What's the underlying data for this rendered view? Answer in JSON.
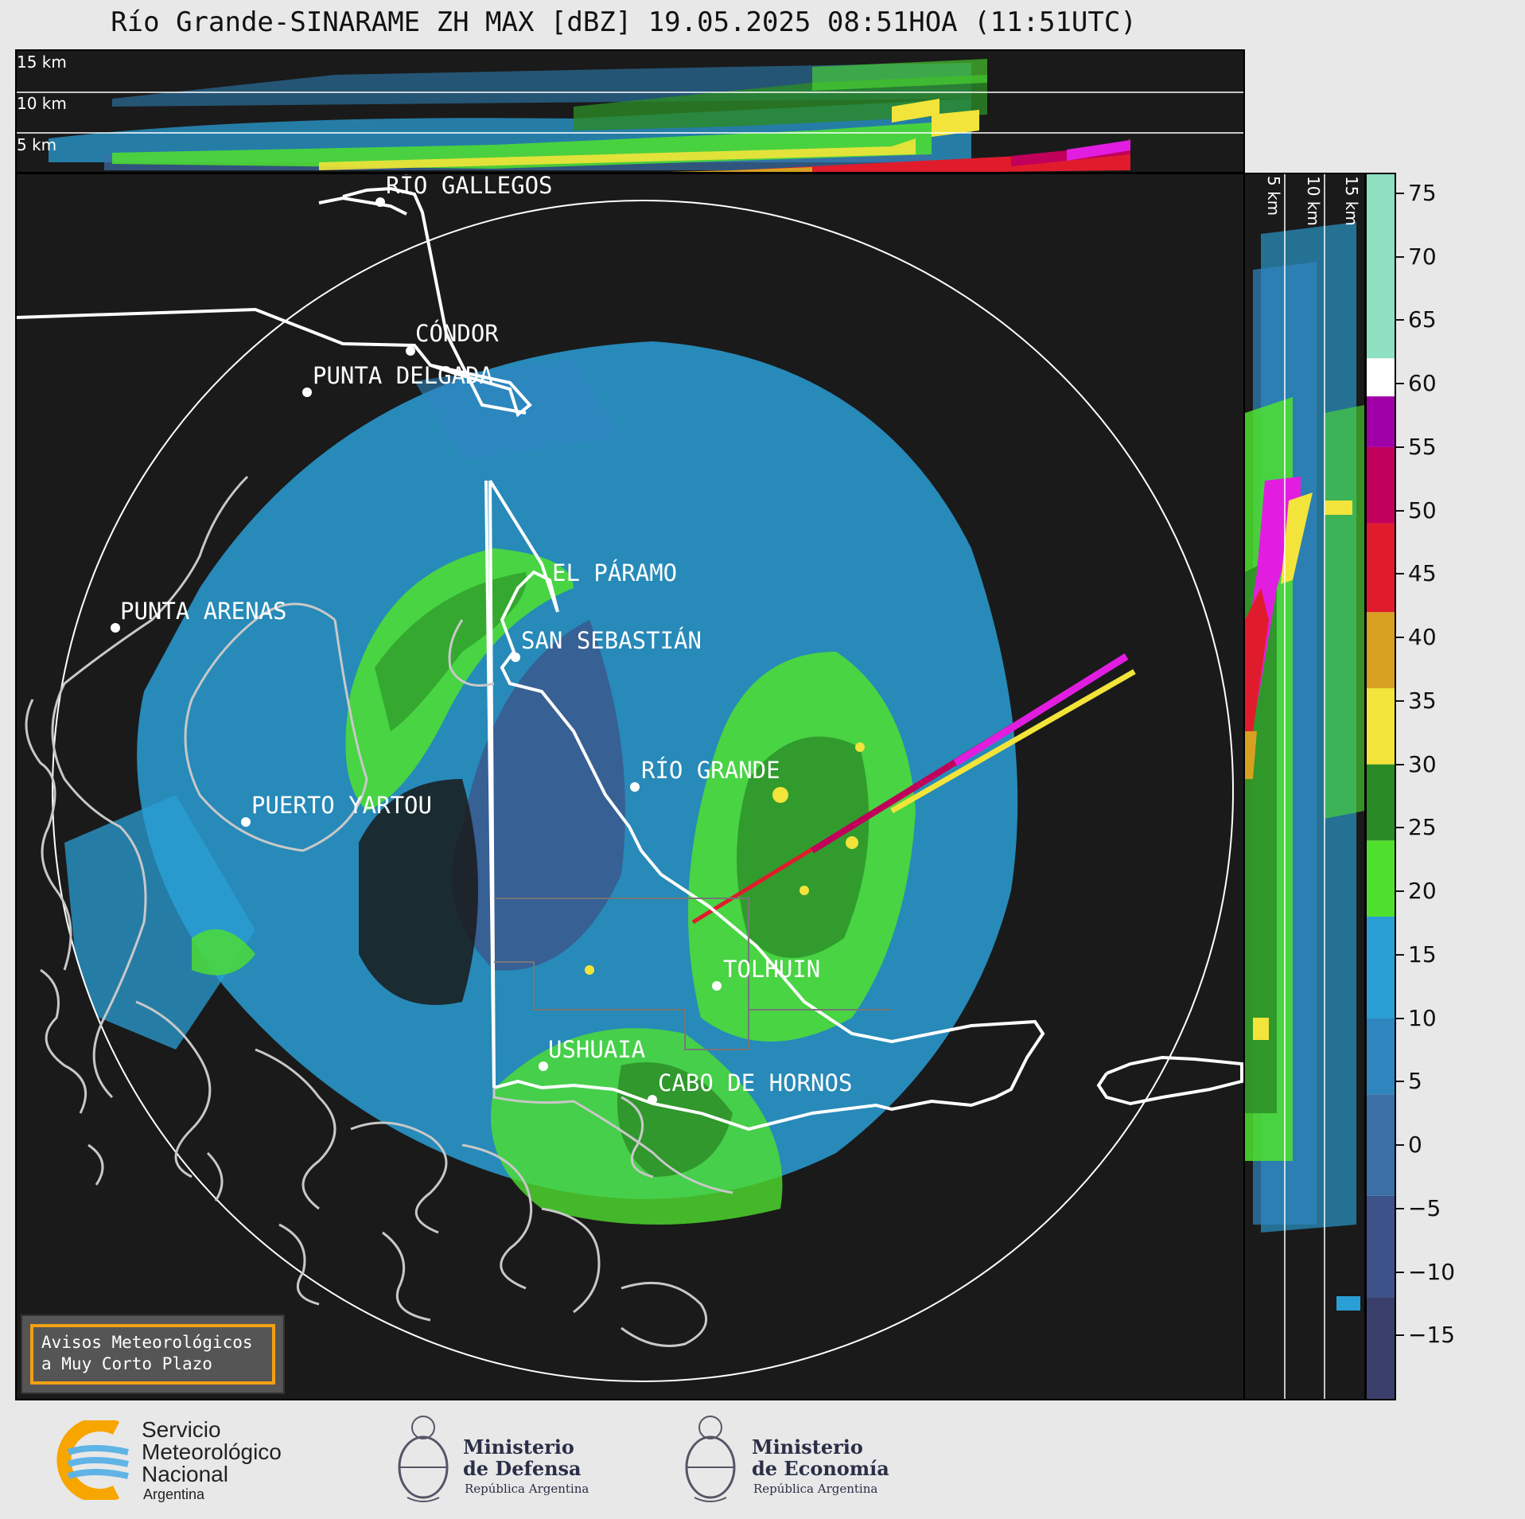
{
  "title": "Río Grande-SINARAME ZH MAX [dBZ] 19.05.2025 08:51HOA (11:51UTC)",
  "top_panel": {
    "height_labels": [
      "15 km",
      "10 km",
      "5 km"
    ]
  },
  "side_panel": {
    "height_labels": [
      "5 km",
      "10 km",
      "15 km"
    ]
  },
  "cities": [
    {
      "name": "RÍO GALLEGOS"
    },
    {
      "name": "CÓNDOR"
    },
    {
      "name": "PUNTA DELGADA"
    },
    {
      "name": "EL PÁRAMO"
    },
    {
      "name": "PUNTA ARENAS"
    },
    {
      "name": "SAN SEBASTIÁN"
    },
    {
      "name": "RÍO GRANDE"
    },
    {
      "name": "PUERTO YARTOU"
    },
    {
      "name": "TOLHUIN"
    },
    {
      "name": "USHUAIA"
    },
    {
      "name": "CABO DE HORNOS"
    }
  ],
  "colorbar": {
    "unit": "dBZ",
    "ticks": [
      "75",
      "70",
      "65",
      "60",
      "55",
      "50",
      "45",
      "40",
      "35",
      "30",
      "25",
      "20",
      "15",
      "10",
      "5",
      "0",
      "−5",
      "−10",
      "−15"
    ],
    "range": [
      -20,
      76.5
    ],
    "stops": [
      {
        "from": -20,
        "to": -12,
        "color": "#3a3f6a"
      },
      {
        "from": -12,
        "to": -4,
        "color": "#3d5288"
      },
      {
        "from": -4,
        "to": 4,
        "color": "#3b6fa6"
      },
      {
        "from": 4,
        "to": 10,
        "color": "#2f86bf"
      },
      {
        "from": 10,
        "to": 18,
        "color": "#2a9fd6"
      },
      {
        "from": 18,
        "to": 24,
        "color": "#4fe02e"
      },
      {
        "from": 24,
        "to": 30,
        "color": "#2a8a25"
      },
      {
        "from": 30,
        "to": 36,
        "color": "#f2e43a"
      },
      {
        "from": 36,
        "to": 42,
        "color": "#d8a020"
      },
      {
        "from": 42,
        "to": 49,
        "color": "#e01c2c"
      },
      {
        "from": 49,
        "to": 55,
        "color": "#c0005a"
      },
      {
        "from": 55,
        "to": 59,
        "color": "#a000a8"
      },
      {
        "from": 59,
        "to": 62,
        "color": "#ffffff"
      },
      {
        "from": 62,
        "to": 76.5,
        "color": "#8fe0c0"
      }
    ]
  },
  "aviso": {
    "line1": "Avisos Meteorológicos",
    "line2": "a Muy Corto Plazo"
  },
  "footer": {
    "smn": {
      "line1": "Servicio",
      "line2": "Meteorológico",
      "line3": "Nacional",
      "line4": "Argentina"
    },
    "defensa": {
      "line1": "Ministerio",
      "line2": "de Defensa",
      "line3": "República Argentina"
    },
    "economia": {
      "line1": "Ministerio",
      "line2": "de Economía",
      "line3": "República Argentina"
    }
  },
  "colors": {
    "map_background": "#1a1a1a",
    "coastline_primary": "#ffffff",
    "coastline_secondary": "#c8c8c8",
    "aviso_border": "#f2a013"
  }
}
